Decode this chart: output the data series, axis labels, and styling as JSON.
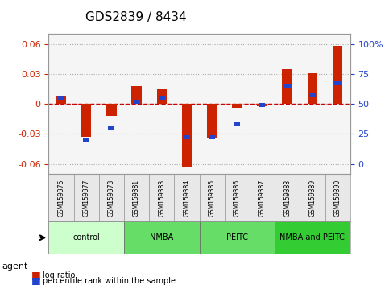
{
  "title": "GDS2839 / 8434",
  "samples": [
    "GSM159376",
    "GSM159377",
    "GSM159378",
    "GSM159381",
    "GSM159383",
    "GSM159384",
    "GSM159385",
    "GSM159386",
    "GSM159387",
    "GSM159388",
    "GSM159389",
    "GSM159390"
  ],
  "log_ratio": [
    0.008,
    -0.033,
    -0.012,
    0.018,
    0.015,
    -0.063,
    -0.034,
    -0.004,
    -0.002,
    0.035,
    0.031,
    0.058
  ],
  "percentile_rank": [
    55,
    20,
    30,
    52,
    55,
    22,
    22,
    33,
    49,
    65,
    58,
    68
  ],
  "groups": [
    {
      "label": "control",
      "start": 0,
      "end": 3,
      "color": "#ccffcc"
    },
    {
      "label": "NMBA",
      "start": 3,
      "end": 6,
      "color": "#66dd66"
    },
    {
      "label": "PEITC",
      "start": 6,
      "end": 9,
      "color": "#66dd66"
    },
    {
      "label": "NMBA and PEITC",
      "start": 9,
      "end": 12,
      "color": "#33cc33"
    }
  ],
  "ylim": [
    -0.07,
    0.07
  ],
  "yticks_left": [
    -0.06,
    -0.03,
    0,
    0.03,
    0.06
  ],
  "yticks_right": [
    0,
    25,
    50,
    75,
    100
  ],
  "bar_color": "#cc2200",
  "percentile_color": "#2244cc",
  "zero_line_color": "#cc0000",
  "grid_color": "#aaaaaa",
  "background_color": "#f5f5f5"
}
